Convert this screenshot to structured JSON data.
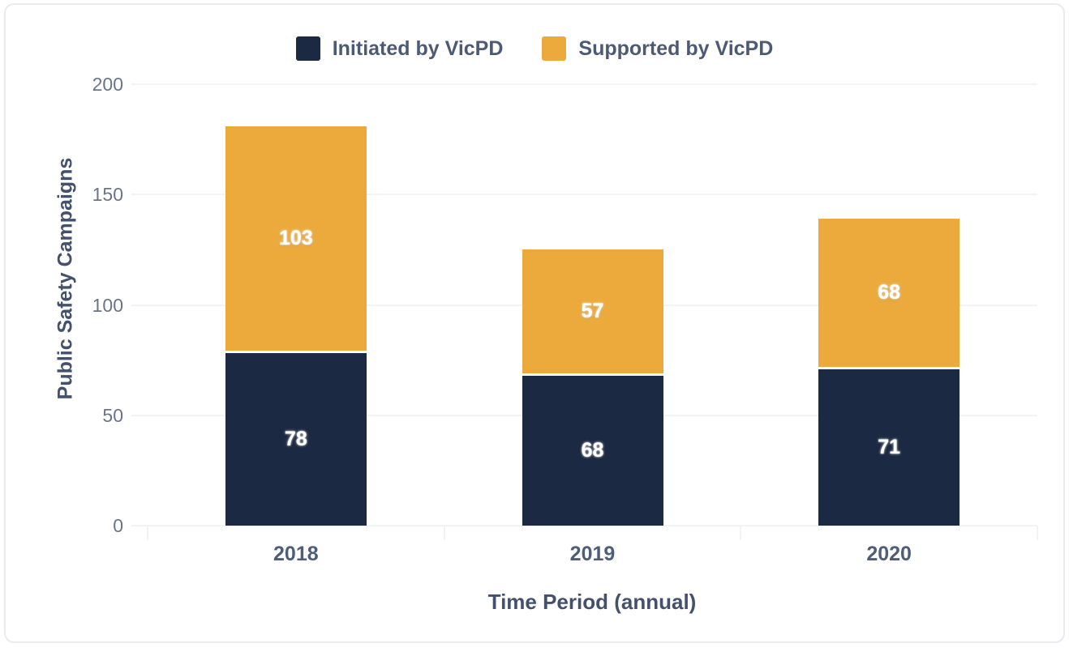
{
  "chart_data": {
    "type": "bar",
    "stacked": true,
    "categories": [
      "2018",
      "2019",
      "2020"
    ],
    "series": [
      {
        "name": "Initiated by VicPD",
        "color": "#1b2942",
        "values": [
          78,
          68,
          71
        ]
      },
      {
        "name": "Supported by VicPD",
        "color": "#edaa3c",
        "values": [
          103,
          57,
          68
        ]
      }
    ],
    "totals": [
      181,
      125,
      139
    ],
    "xlabel": "Time Period (annual)",
    "ylabel": "Public Safety Campaigns",
    "ylim": [
      0,
      200
    ],
    "yticks": [
      0,
      50,
      100,
      150,
      200
    ],
    "grid": true,
    "legend_position": "top",
    "value_label_color": "#ffffff"
  },
  "style": {
    "grid_color": "#f2f3f5",
    "tick_label_color": "#6a7588",
    "category_label_color": "#4e5d78",
    "axis_title_color": "#43516c",
    "legend_text_color": "#4c5a74",
    "card_border_color": "#e9ebf0",
    "background": "#ffffff"
  }
}
